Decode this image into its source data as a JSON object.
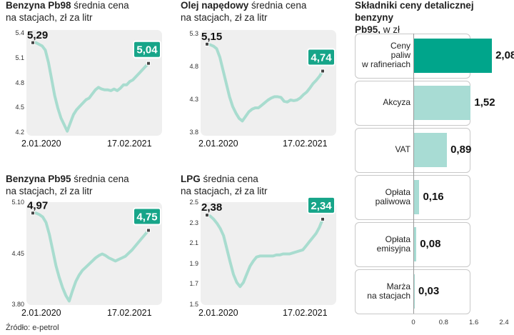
{
  "source": "Źródło: e-petrol",
  "colors": {
    "line": "#a8dccf",
    "badge": "#17a589",
    "bar_primary": "#00a58b",
    "bar_secondary": "#a8dcd4",
    "plot_bg": "#efefef"
  },
  "chart_data": [
    {
      "type": "line",
      "title_bold": "Benzyna Pb98",
      "title_rest": " średnia cena",
      "title_line2": "na stacjach, zł za litr",
      "x_start": "2.01.2020",
      "x_end": "17.02.2021",
      "yticks": [
        "5.4",
        "5.1",
        "4.8",
        "4.5",
        "4.2"
      ],
      "ylim": [
        4.2,
        5.4
      ],
      "start_value": "5,29",
      "end_value": "5,04",
      "values": [
        5.29,
        5.29,
        5.27,
        5.25,
        5.2,
        5.05,
        4.85,
        4.65,
        4.5,
        4.38,
        4.3,
        4.22,
        4.32,
        4.42,
        4.48,
        4.52,
        4.56,
        4.6,
        4.62,
        4.67,
        4.72,
        4.75,
        4.73,
        4.72,
        4.72,
        4.71,
        4.73,
        4.71,
        4.74,
        4.78,
        4.78,
        4.82,
        4.84,
        4.88,
        4.92,
        4.96,
        5.0,
        5.04
      ]
    },
    {
      "type": "line",
      "title_bold": "Olej napędowy",
      "title_rest": " średnia cena",
      "title_line2": "na stacjach, zł za litr",
      "x_start": "2.01.2020",
      "x_end": "17.02.2021",
      "yticks": [
        "5.3",
        "4.8",
        "4.3",
        "3.8"
      ],
      "ylim": [
        3.8,
        5.3
      ],
      "start_value": "5,15",
      "end_value": "4,74",
      "values": [
        5.15,
        5.14,
        5.12,
        5.08,
        4.95,
        4.75,
        4.55,
        4.35,
        4.2,
        4.1,
        4.02,
        3.98,
        4.05,
        4.12,
        4.16,
        4.18,
        4.18,
        4.22,
        4.26,
        4.3,
        4.33,
        4.35,
        4.35,
        4.34,
        4.28,
        4.27,
        4.3,
        4.29,
        4.3,
        4.33,
        4.38,
        4.42,
        4.48,
        4.55,
        4.6,
        4.66,
        4.74
      ]
    },
    {
      "type": "line",
      "title_bold": "Benzyna Pb95",
      "title_rest": " średnia cena",
      "title_line2": "na stacjach, zł za litr",
      "x_start": "2.01.2020",
      "x_end": "17.02.2021",
      "yticks": [
        "5.10",
        "4.45",
        "3.80"
      ],
      "ylim": [
        3.8,
        5.1
      ],
      "start_value": "4,97",
      "end_value": "4,75",
      "values": [
        4.97,
        4.97,
        4.95,
        4.92,
        4.85,
        4.7,
        4.5,
        4.3,
        4.15,
        4.02,
        3.92,
        3.85,
        3.98,
        4.1,
        4.18,
        4.24,
        4.28,
        4.32,
        4.36,
        4.4,
        4.43,
        4.45,
        4.43,
        4.4,
        4.38,
        4.36,
        4.38,
        4.4,
        4.42,
        4.46,
        4.5,
        4.55,
        4.6,
        4.65,
        4.7,
        4.75
      ]
    },
    {
      "type": "line",
      "title_bold": "LPG",
      "title_rest": " średnia cena",
      "title_line2": "na stacjach, zł za litr",
      "x_start": "2.01.2020",
      "x_end": "17.02.2021",
      "yticks": [
        "2.5",
        "2.3",
        "2.1",
        "1.9",
        "1.7",
        "1.5"
      ],
      "ylim": [
        1.5,
        2.5
      ],
      "start_value": "2,38",
      "end_value": "2,34",
      "values": [
        2.38,
        2.37,
        2.34,
        2.3,
        2.25,
        2.18,
        2.05,
        1.92,
        1.8,
        1.72,
        1.68,
        1.72,
        1.8,
        1.88,
        1.93,
        1.97,
        1.98,
        1.98,
        1.98,
        1.98,
        1.98,
        1.99,
        1.99,
        2.0,
        2.0,
        2.0,
        2.01,
        2.02,
        2.03,
        2.04,
        2.08,
        2.12,
        2.16,
        2.2,
        2.26,
        2.34
      ]
    },
    {
      "type": "bar",
      "orientation": "horizontal",
      "title_line1": "Składniki ceny detalicznej benzyny",
      "title_bold2": "Pb95,",
      "title_rest2": " w zł",
      "categories": [
        [
          "Ceny",
          "paliw",
          "w rafineriach"
        ],
        [
          "Akcyza"
        ],
        [
          "VAT"
        ],
        [
          "Opłata",
          "paliwowa"
        ],
        [
          "Opłata",
          "emisyjna"
        ],
        [
          "Marża",
          "na stacjach"
        ]
      ],
      "values": [
        2.08,
        1.52,
        0.89,
        0.16,
        0.08,
        0.03
      ],
      "value_labels": [
        "2,08",
        "1,52",
        "0,89",
        "0,16",
        "0,08",
        "0,03"
      ],
      "xlim": [
        0,
        2.4
      ],
      "xticks": [
        "0",
        "0.8",
        "1.6",
        "2.4"
      ]
    }
  ]
}
